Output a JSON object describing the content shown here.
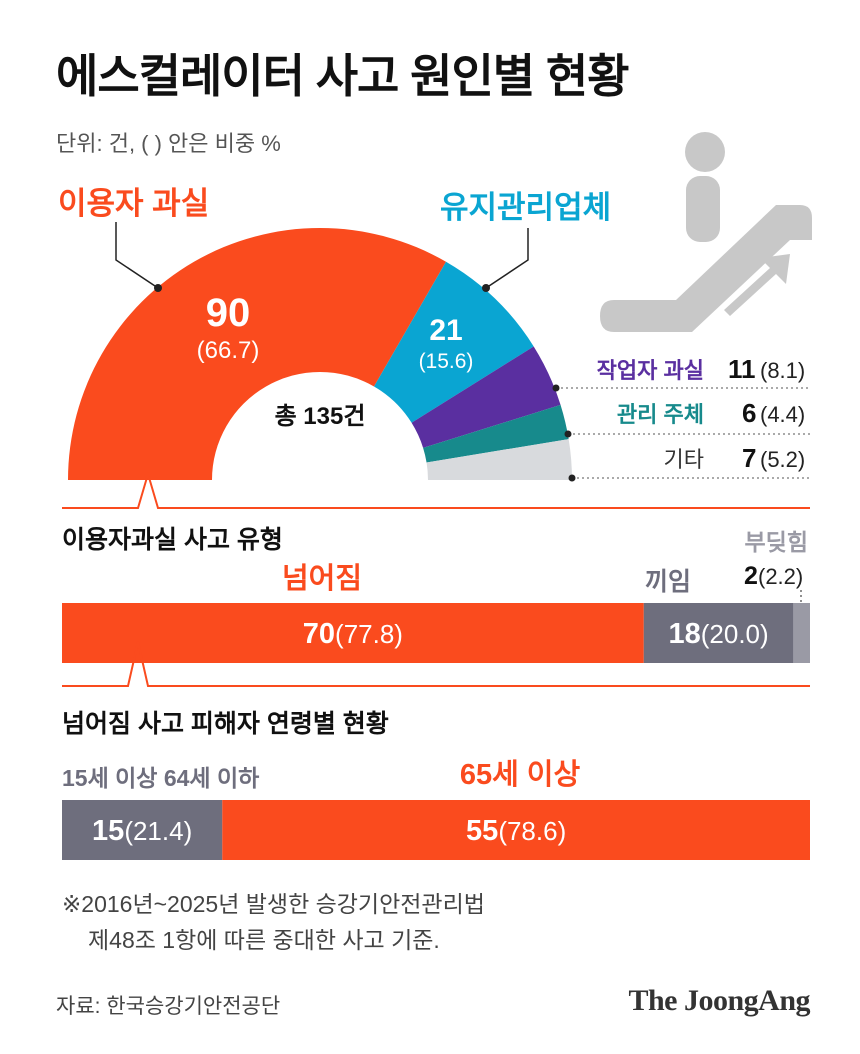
{
  "title": "에스컬레이터 사고 원인별 현황",
  "unit": "단위: 건, ( ) 안은 비중 %",
  "colors": {
    "user_error": "#fa4b1e",
    "maintenance": "#0aa5d2",
    "worker_error": "#5a2fa0",
    "management": "#178a8c",
    "other": "#d8dadd",
    "falling": "#fa4b1e",
    "caught": "#6e6e7d",
    "collision": "#9a9aa5",
    "age_15_64": "#6e6e7d",
    "age_65": "#fa4b1e",
    "icon": "#c8c8c8"
  },
  "icon": "escalator-person-icon",
  "chart_data": [
    {
      "type": "pie",
      "subtype": "half-donut",
      "total_label": "총 135건",
      "total": 135,
      "slices": [
        {
          "label": "이용자 과실",
          "value": 90,
          "value_text": "90",
          "pct_text": "(66.7)",
          "color": "#fa4b1e"
        },
        {
          "label": "유지관리업체",
          "value": 21,
          "value_text": "21",
          "pct_text": "(15.6)",
          "color": "#0aa5d2"
        },
        {
          "label": "작업자 과실",
          "value": 11,
          "value_text": "11",
          "pct_text": "(8.1)",
          "color": "#5a2fa0"
        },
        {
          "label": "관리 주체",
          "value": 6,
          "value_text": "6",
          "pct_text": "(4.4)",
          "color": "#178a8c"
        },
        {
          "label": "기타",
          "value": 7,
          "value_text": "7",
          "pct_text": "(5.2)",
          "color": "#d8dadd"
        }
      ]
    },
    {
      "type": "bar",
      "subtype": "stacked-horizontal",
      "title": "이용자과실 사고 유형",
      "segments": [
        {
          "label": "넘어짐",
          "value": 70,
          "value_text": "70",
          "pct_text": "(77.8)",
          "color": "#fa4b1e"
        },
        {
          "label": "끼임",
          "value": 18,
          "value_text": "18",
          "pct_text": "(20.0)",
          "color": "#6e6e7d"
        },
        {
          "label": "부딪힘",
          "value": 2,
          "value_text": "2",
          "pct_text": "(2.2)",
          "color": "#9a9aa5"
        }
      ]
    },
    {
      "type": "bar",
      "subtype": "stacked-horizontal",
      "title": "넘어짐 사고 피해자 연령별 현황",
      "segments": [
        {
          "label": "15세 이상 64세 이하",
          "value": 15,
          "value_text": "15",
          "pct_text": "(21.4)",
          "color": "#6e6e7d"
        },
        {
          "label": "65세 이상",
          "value": 55,
          "value_text": "55",
          "pct_text": "(78.6)",
          "color": "#fa4b1e"
        }
      ]
    }
  ],
  "note": {
    "line1": "※2016년~2025년 발생한 승강기안전관리법",
    "line2": "제48조 1항에 따른 중대한 사고 기준."
  },
  "source": "자료: 한국승강기안전공단",
  "brand": "The JoongAng"
}
